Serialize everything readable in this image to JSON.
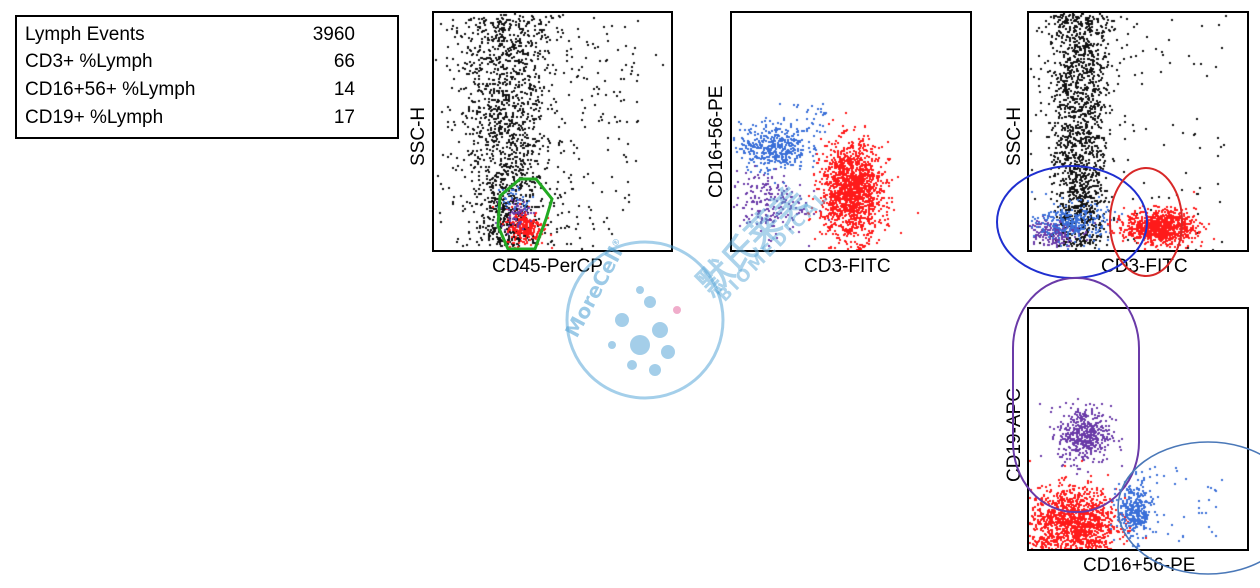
{
  "stats": [
    {
      "label": "Lymph Events",
      "value": "3960"
    },
    {
      "label": "CD3+ %Lymph",
      "value": "66"
    },
    {
      "label": "CD16+56+ %Lymph",
      "value": "14"
    },
    {
      "label": "CD19+ %Lymph",
      "value": "17"
    }
  ],
  "colors": {
    "black": "#111111",
    "red": "#ff1a1a",
    "blue": "#3a6fd8",
    "purple": "#6a3aa8",
    "gate_green": "#22aa22",
    "gate_blue": "#1f2fd0",
    "gate_red": "#d82828",
    "gate_purple": "#6a3aa8",
    "gate_steel": "#4a78b8",
    "watermark": "#5aa7d8"
  },
  "watermark": {
    "brand": "MoreCell",
    "registered": "®",
    "chinese": "默氏莱美",
    "english": "BIOMEDICAL"
  },
  "chart_data": [
    {
      "type": "scatter",
      "xlabel": "CD45-PerCP",
      "ylabel": "SSC-H",
      "xlim": [
        0,
        1
      ],
      "ylim": [
        0,
        1
      ],
      "grid": false,
      "populations": [
        {
          "color": "black",
          "count": 1600,
          "x_center": 0.3,
          "y_center": 0.6
        },
        {
          "color": "red",
          "count": 260,
          "x_center": 0.38,
          "y_center": 0.1
        },
        {
          "color": "purple",
          "count": 60,
          "x_center": 0.34,
          "y_center": 0.16
        },
        {
          "color": "blue",
          "count": 40,
          "x_center": 0.34,
          "y_center": 0.22
        }
      ],
      "gates": [
        {
          "color": "gate_green",
          "shape": "polygon"
        }
      ]
    },
    {
      "type": "scatter",
      "xlabel": "CD3-FITC",
      "ylabel": "CD16+56-PE",
      "xlim": [
        0,
        1
      ],
      "ylim": [
        0,
        1
      ],
      "grid": false,
      "populations": [
        {
          "color": "blue",
          "count": 420,
          "x_center": 0.17,
          "y_center": 0.44
        },
        {
          "color": "red",
          "count": 1500,
          "x_center": 0.5,
          "y_center": 0.25
        },
        {
          "color": "purple",
          "count": 200,
          "x_center": 0.14,
          "y_center": 0.2
        }
      ]
    },
    {
      "type": "scatter",
      "xlabel": "CD3-FITC",
      "ylabel": "SSC-H",
      "xlim": [
        0,
        1
      ],
      "ylim": [
        0,
        1
      ],
      "grid": false,
      "populations": [
        {
          "color": "black",
          "count": 1500,
          "x_center": 0.23,
          "y_center": 0.6
        },
        {
          "color": "red",
          "count": 900,
          "x_center": 0.6,
          "y_center": 0.1
        },
        {
          "color": "blue",
          "count": 280,
          "x_center": 0.2,
          "y_center": 0.12
        },
        {
          "color": "purple",
          "count": 180,
          "x_center": 0.1,
          "y_center": 0.08
        }
      ],
      "gates": [
        {
          "color": "gate_blue",
          "shape": "ellipse"
        },
        {
          "color": "gate_red",
          "shape": "ellipse"
        }
      ]
    },
    {
      "type": "scatter",
      "xlabel": "CD16+56-PE",
      "ylabel": "CD19-APC",
      "xlim": [
        0,
        1
      ],
      "ylim": [
        0,
        1
      ],
      "grid": false,
      "populations": [
        {
          "color": "purple",
          "count": 450,
          "x_center": 0.25,
          "y_center": 0.48
        },
        {
          "color": "red",
          "count": 1200,
          "x_center": 0.2,
          "y_center": 0.12
        },
        {
          "color": "blue",
          "count": 320,
          "x_center": 0.48,
          "y_center": 0.16
        }
      ],
      "gates": [
        {
          "color": "gate_purple",
          "shape": "ellipse"
        },
        {
          "color": "gate_steel",
          "shape": "ellipse"
        }
      ]
    }
  ]
}
